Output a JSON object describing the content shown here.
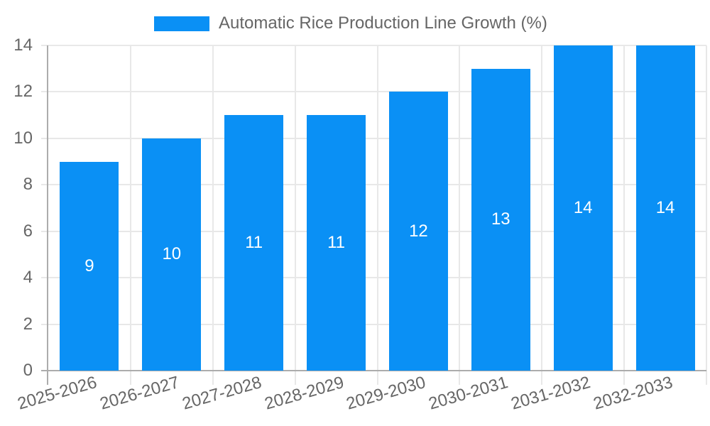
{
  "chart_data": {
    "type": "bar",
    "title": "Automatic Rice Production Line Growth (%)",
    "legend": [
      "Automatic Rice Production Line Growth (%)"
    ],
    "legend_position": "top",
    "categories": [
      "2025-2026",
      "2026-2027",
      "2027-2028",
      "2028-2029",
      "2029-2030",
      "2030-2031",
      "2031-2032",
      "2032-2033"
    ],
    "values": [
      9,
      10,
      11,
      11,
      12,
      13,
      14,
      14
    ],
    "xlabel": "",
    "ylabel": "",
    "ylim": [
      0,
      14
    ],
    "yticks": [
      0,
      2,
      4,
      6,
      8,
      10,
      12,
      14
    ],
    "grid": true,
    "value_labels_position": "inside-center",
    "x_tick_rotation_deg": -16,
    "colors": {
      "bar": "#0A90F5",
      "grid": "#E8E8E8",
      "axis": "#ACACAC",
      "tick_text": "#666666",
      "value_text": "#FFFFFF",
      "background": "#FFFFFF"
    }
  }
}
